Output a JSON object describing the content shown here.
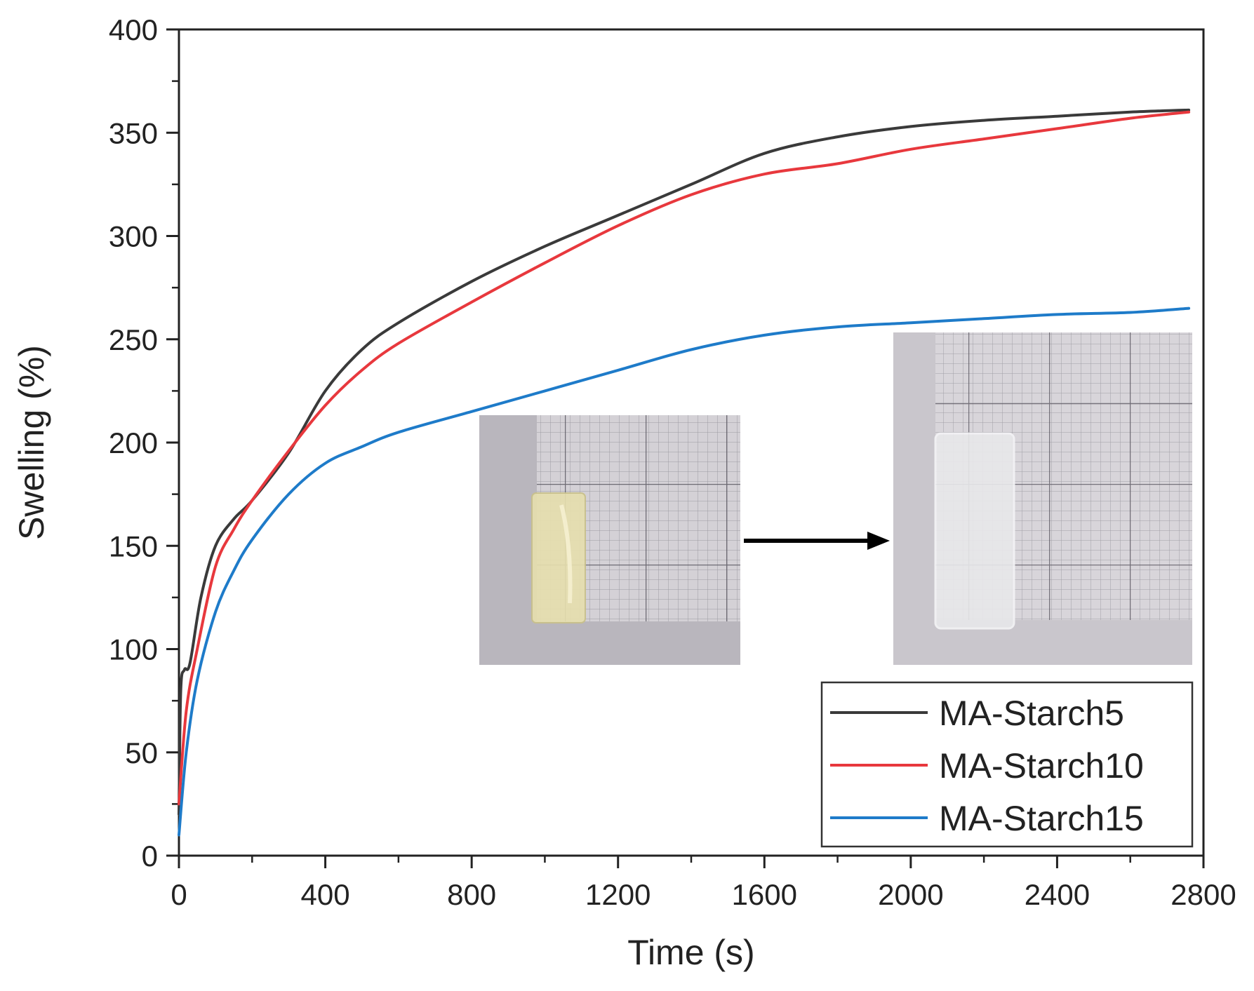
{
  "chart_data": {
    "type": "line",
    "xlabel": "Time (s)",
    "ylabel": "Swelling (%)",
    "xlim": [
      0,
      2800
    ],
    "ylim": [
      0,
      400
    ],
    "xticks": [
      0,
      400,
      800,
      1200,
      1600,
      2000,
      2400,
      2800
    ],
    "yticks": [
      0,
      50,
      100,
      150,
      200,
      250,
      300,
      350,
      400
    ],
    "grid": false,
    "legend_position": "bottom-right",
    "series": [
      {
        "name": "MA-Starch5",
        "color": "#3a3a3a",
        "points": [
          [
            0,
            20
          ],
          [
            5,
            80
          ],
          [
            15,
            90
          ],
          [
            30,
            93
          ],
          [
            60,
            125
          ],
          [
            100,
            150
          ],
          [
            150,
            163
          ],
          [
            200,
            172
          ],
          [
            300,
            195
          ],
          [
            400,
            225
          ],
          [
            500,
            245
          ],
          [
            600,
            258
          ],
          [
            800,
            278
          ],
          [
            1000,
            295
          ],
          [
            1200,
            310
          ],
          [
            1400,
            325
          ],
          [
            1600,
            340
          ],
          [
            1800,
            348
          ],
          [
            2000,
            353
          ],
          [
            2200,
            356
          ],
          [
            2400,
            358
          ],
          [
            2600,
            360
          ],
          [
            2760,
            361
          ]
        ]
      },
      {
        "name": "MA-Starch10",
        "color": "#e8383d",
        "points": [
          [
            0,
            25
          ],
          [
            20,
            70
          ],
          [
            50,
            100
          ],
          [
            100,
            140
          ],
          [
            150,
            158
          ],
          [
            200,
            172
          ],
          [
            300,
            196
          ],
          [
            400,
            218
          ],
          [
            500,
            235
          ],
          [
            600,
            248
          ],
          [
            800,
            268
          ],
          [
            1000,
            287
          ],
          [
            1200,
            305
          ],
          [
            1400,
            320
          ],
          [
            1600,
            330
          ],
          [
            1800,
            335
          ],
          [
            2000,
            342
          ],
          [
            2200,
            347
          ],
          [
            2400,
            352
          ],
          [
            2600,
            357
          ],
          [
            2760,
            360
          ]
        ]
      },
      {
        "name": "MA-Starch15",
        "color": "#1e7bc9",
        "points": [
          [
            0,
            10
          ],
          [
            20,
            50
          ],
          [
            50,
            85
          ],
          [
            100,
            118
          ],
          [
            150,
            138
          ],
          [
            200,
            153
          ],
          [
            300,
            175
          ],
          [
            400,
            190
          ],
          [
            500,
            198
          ],
          [
            600,
            205
          ],
          [
            800,
            215
          ],
          [
            1000,
            225
          ],
          [
            1200,
            235
          ],
          [
            1400,
            245
          ],
          [
            1600,
            252
          ],
          [
            1800,
            256
          ],
          [
            2000,
            258
          ],
          [
            2200,
            260
          ],
          [
            2400,
            262
          ],
          [
            2600,
            263
          ],
          [
            2760,
            265
          ]
        ]
      }
    ],
    "annotations": [
      {
        "type": "inset-photo",
        "description_key": "dry-sample"
      },
      {
        "type": "arrow"
      },
      {
        "type": "inset-photo",
        "description_key": "swollen-sample"
      }
    ]
  }
}
